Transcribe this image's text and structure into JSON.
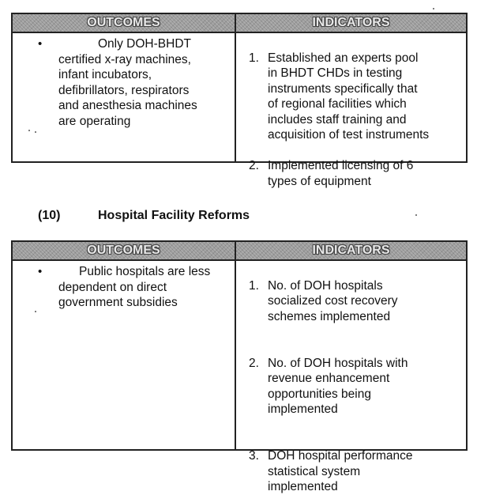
{
  "table1": {
    "header_outcomes": "OUTCOMES",
    "header_indicators": "INDICATORS",
    "outcome": "Only DOH-BHDT\ncertified x-ray machines,\ninfant incubators,\ndefibrillators, respirators\nand anesthesia machines\nare operating",
    "indicators": [
      {
        "num": "1.",
        "text": "Established an experts pool\nin BHDT CHDs in testing\ninstruments specifically that\nof regional facilities which\nincludes staff training and\nacquisition of test instruments"
      },
      {
        "num": "2.",
        "text": "Implemented licensing of 6\ntypes of equipment"
      }
    ]
  },
  "section": {
    "number": "(10)",
    "title": "Hospital Facility Reforms"
  },
  "table2": {
    "header_outcomes": "OUTCOMES",
    "header_indicators": "INDICATORS",
    "outcome": "Public hospitals are less\ndependent on direct\ngovernment subsidies",
    "indicators": [
      {
        "num": "1.",
        "text": "No. of DOH hospitals\nsocialized cost recovery\nschemes implemented"
      },
      {
        "num": "2.",
        "text": "No. of DOH hospitals with\nrevenue enhancement\nopportunities being\nimplemented"
      },
      {
        "num": "3.",
        "text": "DOH hospital performance\nstatistical system\nimplemented"
      }
    ]
  },
  "bullet_glyph": "•"
}
